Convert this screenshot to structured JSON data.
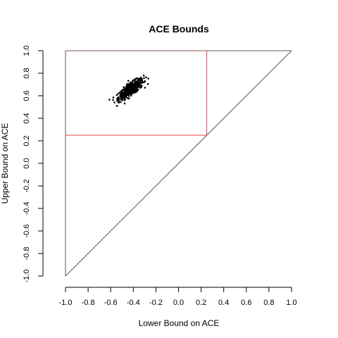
{
  "chart_data": {
    "type": "scatter",
    "title": "ACE Bounds",
    "xlabel": "Lower Bound on ACE",
    "ylabel": "Upper Bound on ACE",
    "xlim": [
      -1.0,
      1.0
    ],
    "ylim": [
      -1.0,
      1.0
    ],
    "x_ticks": [
      "-1.0",
      "-0.8",
      "-0.6",
      "-0.4",
      "-0.2",
      "0.0",
      "0.2",
      "0.4",
      "0.6",
      "0.8",
      "1.0"
    ],
    "y_ticks": [
      "-1.0",
      "-0.8",
      "-0.6",
      "-0.4",
      "-0.2",
      "0.0",
      "0.2",
      "0.4",
      "0.6",
      "0.8",
      "1.0"
    ],
    "grid": false,
    "legend": "none",
    "point_cloud": {
      "count": 500,
      "center": [
        -0.42,
        0.66
      ],
      "x_range": [
        -0.62,
        -0.22
      ],
      "y_range": [
        0.5,
        0.8
      ],
      "color": "#000000"
    },
    "reference_lines": {
      "diagonal": {
        "from": [
          -1.0,
          -1.0
        ],
        "to": [
          1.0,
          1.0
        ],
        "color": "#555555"
      },
      "top": {
        "from": [
          -1.0,
          1.0
        ],
        "to": [
          1.0,
          1.0
        ],
        "color": "#555555"
      },
      "left": {
        "from": [
          -1.0,
          -1.0
        ],
        "to": [
          -1.0,
          1.0
        ],
        "color": "#555555"
      }
    },
    "red_box": {
      "x": [
        -1.0,
        0.25
      ],
      "y": [
        0.25,
        1.0
      ],
      "color": "#e0454b"
    }
  }
}
